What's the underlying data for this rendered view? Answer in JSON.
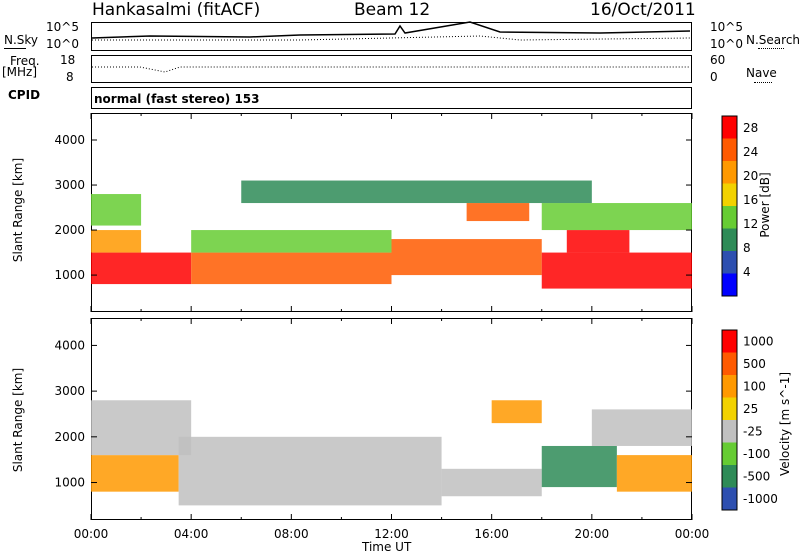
{
  "header": {
    "station": "Hankasalmi (fitACF)",
    "beam": "Beam 12",
    "date": "16/Oct/2011"
  },
  "top_panel": {
    "nsky_label": "N.Sky",
    "nsky_top": "10^5",
    "nsky_bottom": "10^0",
    "nsearch_top": "10^5",
    "nsearch_bottom": "10^0",
    "nsearch_label": "N.Search",
    "freq_label": "Freq.",
    "freq_unit": "[MHz]",
    "freq_top": "18",
    "freq_bottom": "8",
    "nave_top": "60",
    "nave_bottom": "0",
    "nave_label": "Nave",
    "cpid_label": "CPID",
    "cpid_value": "normal (fast stereo) 153"
  },
  "chart_data": [
    {
      "type": "heatmap",
      "title": "",
      "ylabel": "Slant Range [km]",
      "xlabel": "",
      "ylim": [
        180,
        4600
      ],
      "yticks": [
        "1000",
        "2000",
        "3000",
        "4000"
      ],
      "colorbar": {
        "label": "Power [dB]",
        "ticks": [
          "4",
          "8",
          "12",
          "16",
          "20",
          "24",
          "28"
        ],
        "range": [
          0,
          30
        ],
        "colors": [
          "#0000ff",
          "#2d4fb0",
          "#2e8b57",
          "#66cc33",
          "#f2d200",
          "#ff9900",
          "#ff5a00",
          "#ff0000"
        ]
      },
      "regions": [
        {
          "t0": 0.0,
          "t1": 4.0,
          "r0": 800,
          "r1": 1500,
          "level": 7
        },
        {
          "t0": 0.0,
          "t1": 2.0,
          "r0": 1500,
          "r1": 2000,
          "level": 5
        },
        {
          "t0": 0.0,
          "t1": 2.0,
          "r0": 2100,
          "r1": 2800,
          "level": 3
        },
        {
          "t0": 4.0,
          "t1": 12.0,
          "r0": 800,
          "r1": 1500,
          "level": 6
        },
        {
          "t0": 4.0,
          "t1": 12.0,
          "r0": 1500,
          "r1": 2000,
          "level": 3
        },
        {
          "t0": 12.0,
          "t1": 18.0,
          "r0": 1000,
          "r1": 1800,
          "level": 6
        },
        {
          "t0": 15.0,
          "t1": 17.5,
          "r0": 2200,
          "r1": 2600,
          "level": 6
        },
        {
          "t0": 18.0,
          "t1": 24.0,
          "r0": 700,
          "r1": 1500,
          "level": 7
        },
        {
          "t0": 19.0,
          "t1": 21.5,
          "r0": 1500,
          "r1": 2000,
          "level": 7
        },
        {
          "t0": 18.0,
          "t1": 24.0,
          "r0": 2000,
          "r1": 2600,
          "level": 3
        },
        {
          "t0": 6.0,
          "t1": 20.0,
          "r0": 2600,
          "r1": 3100,
          "level": 2
        }
      ]
    },
    {
      "type": "heatmap",
      "title": "",
      "ylabel": "Slant Range [km]",
      "xlabel": "Time UT",
      "ylim": [
        180,
        4600
      ],
      "yticks": [
        "1000",
        "2000",
        "3000",
        "4000"
      ],
      "xticks": [
        "00:00",
        "04:00",
        "08:00",
        "12:00",
        "16:00",
        "20:00",
        "00:00"
      ],
      "xlim": [
        0,
        24
      ],
      "colorbar": {
        "label": "Velocity [m s^-1]",
        "ticks": [
          "1000",
          "500",
          "100",
          "25",
          "-25",
          "-100",
          "-500",
          "-1000"
        ],
        "colors": [
          "#2d4fb0",
          "#2e8b57",
          "#66cc33",
          "#c0c0c0",
          "#f2d200",
          "#ff9900",
          "#ff5a00",
          "#ff0000"
        ]
      },
      "regions": [
        {
          "t0": 0.0,
          "t1": 3.5,
          "r0": 800,
          "r1": 1600,
          "level": 5
        },
        {
          "t0": 0.0,
          "t1": 4.0,
          "r0": 1600,
          "r1": 2800,
          "level": 3
        },
        {
          "t0": 3.5,
          "t1": 14.0,
          "r0": 500,
          "r1": 2000,
          "level": 3
        },
        {
          "t0": 14.0,
          "t1": 18.0,
          "r0": 700,
          "r1": 1300,
          "level": 3
        },
        {
          "t0": 16.0,
          "t1": 18.0,
          "r0": 2300,
          "r1": 2800,
          "level": 5
        },
        {
          "t0": 18.0,
          "t1": 21.0,
          "r0": 900,
          "r1": 1800,
          "level": 1
        },
        {
          "t0": 21.0,
          "t1": 24.0,
          "r0": 800,
          "r1": 1600,
          "level": 5
        },
        {
          "t0": 20.0,
          "t1": 24.0,
          "r0": 1800,
          "r1": 2600,
          "level": 3
        }
      ]
    }
  ]
}
